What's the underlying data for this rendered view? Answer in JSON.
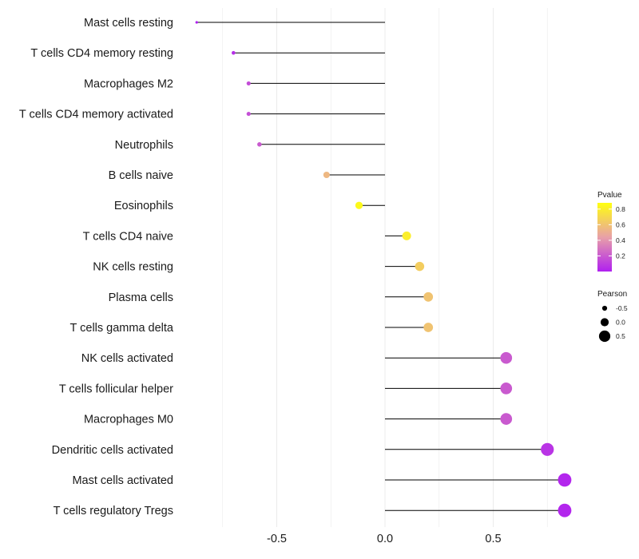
{
  "chart_data": {
    "type": "lollipop",
    "x_ticks": [
      -0.5,
      0.0,
      0.5
    ],
    "x_tick_labels": [
      "-0.5",
      "0.0",
      "0.5"
    ],
    "xlim": [
      -0.97,
      0.95
    ],
    "grid": "vertical-major-and-minor",
    "legend_position": "right",
    "points": [
      {
        "label": "Mast cells resting",
        "pearson": -0.87,
        "pvalue": 0.0
      },
      {
        "label": "T cells CD4 memory resting",
        "pearson": -0.7,
        "pvalue": 0.05
      },
      {
        "label": "Macrophages M2",
        "pearson": -0.63,
        "pvalue": 0.15
      },
      {
        "label": "T cells CD4 memory activated",
        "pearson": -0.63,
        "pvalue": 0.16
      },
      {
        "label": "Neutrophils",
        "pearson": -0.58,
        "pvalue": 0.2
      },
      {
        "label": "B cells naive",
        "pearson": -0.27,
        "pvalue": 0.55
      },
      {
        "label": "Eosinophils",
        "pearson": -0.12,
        "pvalue": 0.85
      },
      {
        "label": "T cells CD4 naive",
        "pearson": 0.1,
        "pvalue": 0.8
      },
      {
        "label": "NK cells resting",
        "pearson": 0.16,
        "pvalue": 0.65
      },
      {
        "label": "Plasma cells",
        "pearson": 0.2,
        "pvalue": 0.6
      },
      {
        "label": "T cells gamma delta",
        "pearson": 0.2,
        "pvalue": 0.6
      },
      {
        "label": "NK cells activated",
        "pearson": 0.56,
        "pvalue": 0.2
      },
      {
        "label": "T cells follicular helper",
        "pearson": 0.56,
        "pvalue": 0.2
      },
      {
        "label": "Macrophages M0",
        "pearson": 0.56,
        "pvalue": 0.2
      },
      {
        "label": "Dendritic cells activated",
        "pearson": 0.75,
        "pvalue": 0.07
      },
      {
        "label": "Mast cells activated",
        "pearson": 0.83,
        "pvalue": 0.02
      },
      {
        "label": "T cells regulatory  Tregs",
        "pearson": 0.83,
        "pvalue": 0.02
      }
    ],
    "color_legend": {
      "title": "Pvalue",
      "low_color": "#b020f0",
      "mid_color": "#e8a0a8",
      "high_color": "#ffff10",
      "range": [
        0.0,
        0.88
      ],
      "ticks": [
        0.2,
        0.4,
        0.6,
        0.8
      ],
      "tick_labels": [
        "0.2",
        "0.4",
        "0.6",
        "0.8"
      ]
    },
    "size_legend": {
      "title": "Pearson",
      "values": [
        -0.5,
        0.0,
        0.5
      ],
      "labels": [
        "-0.5",
        "0.0",
        "0.5"
      ]
    },
    "colors": {
      "stem": "#000000",
      "grid": "#ebebeb",
      "text": "#1a1a1a"
    }
  }
}
